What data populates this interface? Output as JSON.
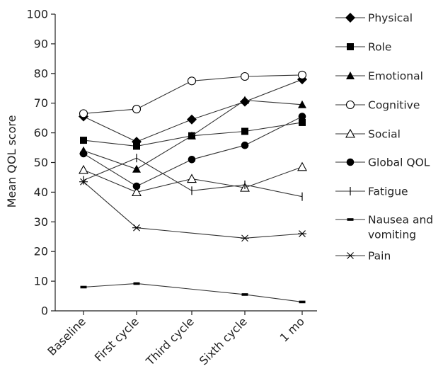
{
  "chart_data": {
    "type": "line",
    "title": "",
    "xlabel": "",
    "ylabel": "Mean QOL score",
    "ylim": [
      0,
      100
    ],
    "yticks": [
      0,
      10,
      20,
      30,
      40,
      50,
      60,
      70,
      80,
      90,
      100
    ],
    "categories": [
      "Baseline",
      "First cycle",
      "Third cycle",
      "Sixth cycle",
      "1 mo"
    ],
    "grid": false,
    "legend_position": "right",
    "series": [
      {
        "name": "Physical",
        "marker": "diamond-filled",
        "values": [
          65.5,
          57,
          64.5,
          70.5,
          78
        ]
      },
      {
        "name": "Role",
        "marker": "square-filled",
        "values": [
          57.5,
          55.5,
          59,
          60.5,
          63.5
        ]
      },
      {
        "name": "Emotional",
        "marker": "triangle-filled",
        "values": [
          54,
          47.8,
          59,
          71,
          69.5
        ]
      },
      {
        "name": "Cognitive",
        "marker": "circle-open",
        "values": [
          66.5,
          68,
          77.5,
          79,
          79.5
        ]
      },
      {
        "name": "Social",
        "marker": "triangle-open",
        "values": [
          47.5,
          40,
          44.5,
          41.5,
          48.5
        ]
      },
      {
        "name": "Global QOL",
        "marker": "circle-filled",
        "values": [
          53,
          42,
          51,
          55.8,
          65.5
        ]
      },
      {
        "name": "Fatigue",
        "marker": "vbar",
        "values": [
          44,
          51.5,
          40.5,
          42.5,
          38.5
        ]
      },
      {
        "name": "Nausea and vomiting",
        "marker": "dash",
        "values": [
          8,
          9.2,
          null,
          5.5,
          3
        ]
      },
      {
        "name": "Pain",
        "marker": "asterisk",
        "values": [
          43.5,
          28,
          null,
          24.5,
          26
        ]
      }
    ]
  }
}
